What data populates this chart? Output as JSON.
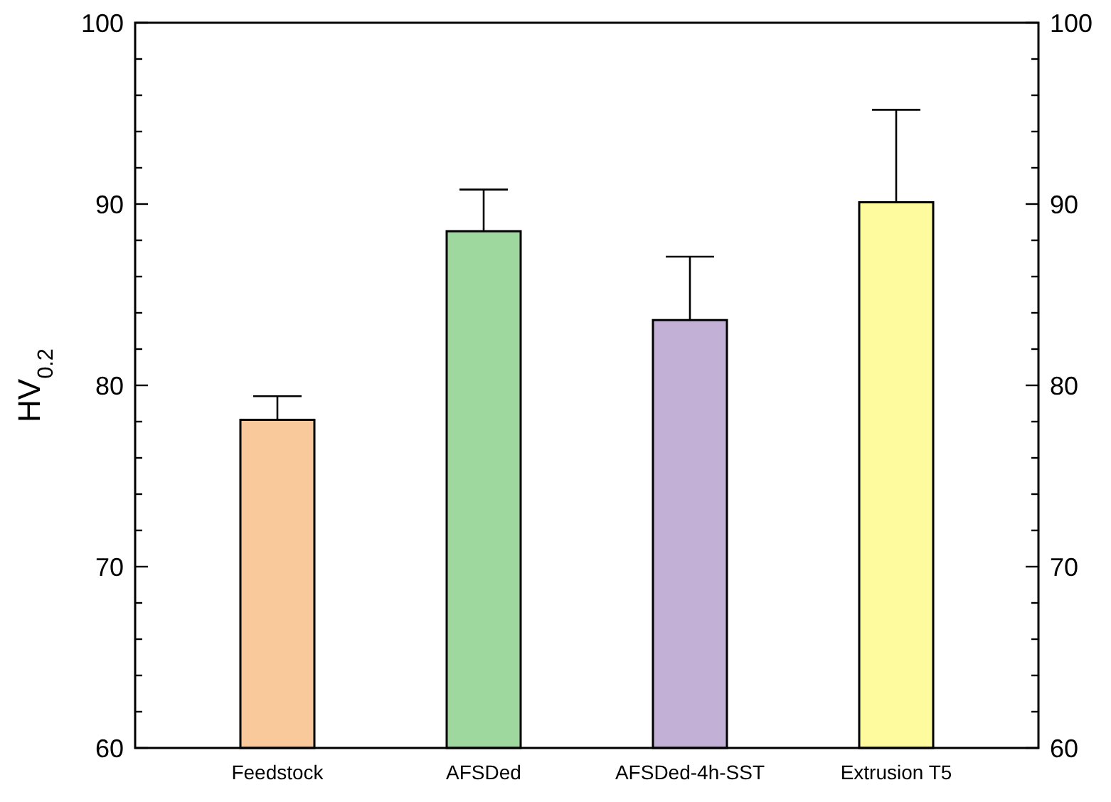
{
  "chart_data": {
    "type": "bar",
    "ylabel": "HV$_{0.2}$",
    "categories": [
      "Feedstock",
      "AFSDed",
      "AFSDed-4h-SST",
      "Extrusion T5"
    ],
    "values": [
      78.1,
      88.5,
      83.6,
      90.1
    ],
    "colors": [
      "#f9c89b",
      "#9ed89e",
      "#c2b0d6",
      "#fdfb9d"
    ],
    "errors": [
      [
        78.1,
        79.4
      ],
      [
        88.5,
        90.8
      ],
      [
        83.6,
        87.1
      ],
      [
        90.1,
        95.2
      ]
    ],
    "ylim": [
      60,
      100
    ],
    "yticks": [
      60,
      {
        "value": 62,
        "label": null
      },
      {
        "value": 64,
        "label": null
      },
      {
        "value": 66,
        "label": null
      },
      {
        "value": 68,
        "label": null
      },
      70,
      {
        "value": 72,
        "label": null
      },
      {
        "value": 74,
        "label": null
      },
      {
        "value": 76,
        "label": null
      },
      {
        "value": 78,
        "label": null
      },
      80,
      {
        "value": 82,
        "label": null
      },
      {
        "value": 84,
        "label": null
      },
      {
        "value": 86,
        "label": null
      },
      {
        "value": 88,
        "label": null
      },
      90,
      {
        "value": 92,
        "label": null
      },
      {
        "value": 94,
        "label": null
      },
      {
        "value": 96,
        "label": null
      },
      {
        "value": 98,
        "label": null
      },
      100
    ],
    "y2lim": [
      60,
      100
    ],
    "y2ticks": [
      60,
      {
        "value": 62,
        "label": null
      },
      {
        "value": 64,
        "label": null
      },
      {
        "value": 66,
        "label": null
      },
      {
        "value": 68,
        "label": null
      },
      70,
      {
        "value": 72,
        "label": null
      },
      {
        "value": 74,
        "label": null
      },
      {
        "value": 76,
        "label": null
      },
      {
        "value": 78,
        "label": null
      },
      80,
      {
        "value": 82,
        "label": null
      },
      {
        "value": 84,
        "label": null
      },
      {
        "value": 86,
        "label": null
      },
      {
        "value": 88,
        "label": null
      },
      90,
      {
        "value": 92,
        "label": null
      },
      {
        "value": 94,
        "label": null
      },
      {
        "value": 96,
        "label": null
      },
      {
        "value": 98,
        "label": null
      },
      100
    ],
    "grid": false
  }
}
